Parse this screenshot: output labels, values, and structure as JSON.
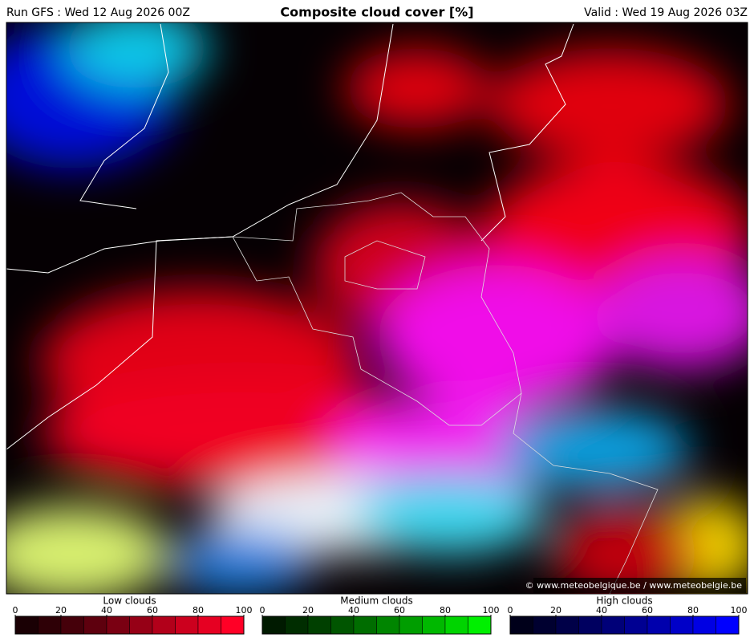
{
  "header": {
    "run": "Run GFS : Wed 12 Aug 2026 00Z",
    "title": "Composite cloud cover [%]",
    "valid": "Valid : Wed 19 Aug 2026 03Z"
  },
  "copyright": "© www.meteobelgique.be / www.meteobelgie.be",
  "legends": [
    {
      "title": "Low clouds",
      "ticks": [
        0,
        20,
        40,
        60,
        80,
        100
      ],
      "range": [
        0,
        100
      ],
      "colors": [
        "#1a0004",
        "#2e0006",
        "#45000a",
        "#5e000e",
        "#7a0012",
        "#960016",
        "#b2001a",
        "#cc001e",
        "#e60022",
        "#ff0026"
      ]
    },
    {
      "title": "Medium clouds",
      "ticks": [
        0,
        20,
        40,
        60,
        80,
        100
      ],
      "range": [
        0,
        100
      ],
      "colors": [
        "#001a00",
        "#002d00",
        "#004000",
        "#005500",
        "#006d00",
        "#008500",
        "#009e00",
        "#00b800",
        "#00d400",
        "#00f000"
      ]
    },
    {
      "title": "High clouds",
      "ticks": [
        0,
        20,
        40,
        60,
        80,
        100
      ],
      "range": [
        0,
        100
      ],
      "colors": [
        "#00001a",
        "#000030",
        "#000048",
        "#000060",
        "#000078",
        "#000092",
        "#0000ad",
        "#0000c8",
        "#0000e3",
        "#0000ff"
      ]
    }
  ]
}
